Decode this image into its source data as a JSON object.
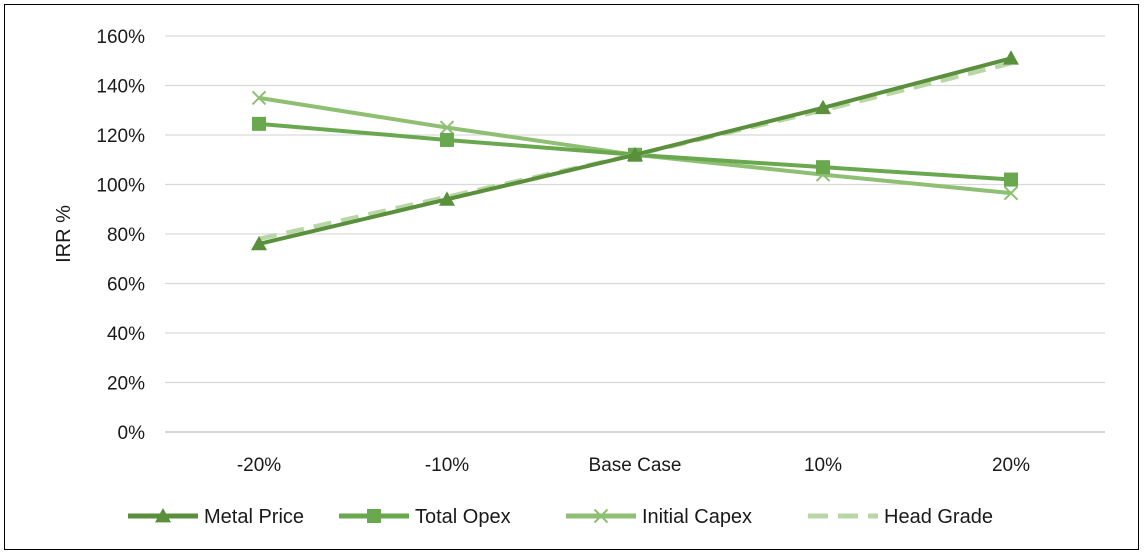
{
  "chart_data": {
    "type": "line",
    "title": "",
    "xlabel": "",
    "ylabel": "IRR %",
    "categories": [
      "-20%",
      "-10%",
      "Base Case",
      "10%",
      "20%"
    ],
    "ylim": [
      0,
      160
    ],
    "ytick_step": 20,
    "ytick_labels": [
      "0%",
      "20%",
      "40%",
      "60%",
      "80%",
      "100%",
      "120%",
      "140%",
      "160%"
    ],
    "grid": true,
    "legend_position": "bottom",
    "series": [
      {
        "name": "Metal Price",
        "values": [
          76,
          94,
          112,
          131,
          151
        ],
        "color": "#5a8f3c",
        "marker": "triangle",
        "dash": false
      },
      {
        "name": "Total Opex",
        "values": [
          124.5,
          118,
          112,
          107,
          102
        ],
        "color": "#6aa84f",
        "marker": "square",
        "dash": false
      },
      {
        "name": "Initial Capex",
        "values": [
          135,
          123,
          112,
          104,
          96.5
        ],
        "color": "#8fbf72",
        "marker": "x",
        "dash": false
      },
      {
        "name": "Head Grade",
        "values": [
          78,
          95,
          112,
          130,
          149
        ],
        "color": "#b9d7a6",
        "marker": "none",
        "dash": true
      }
    ]
  }
}
